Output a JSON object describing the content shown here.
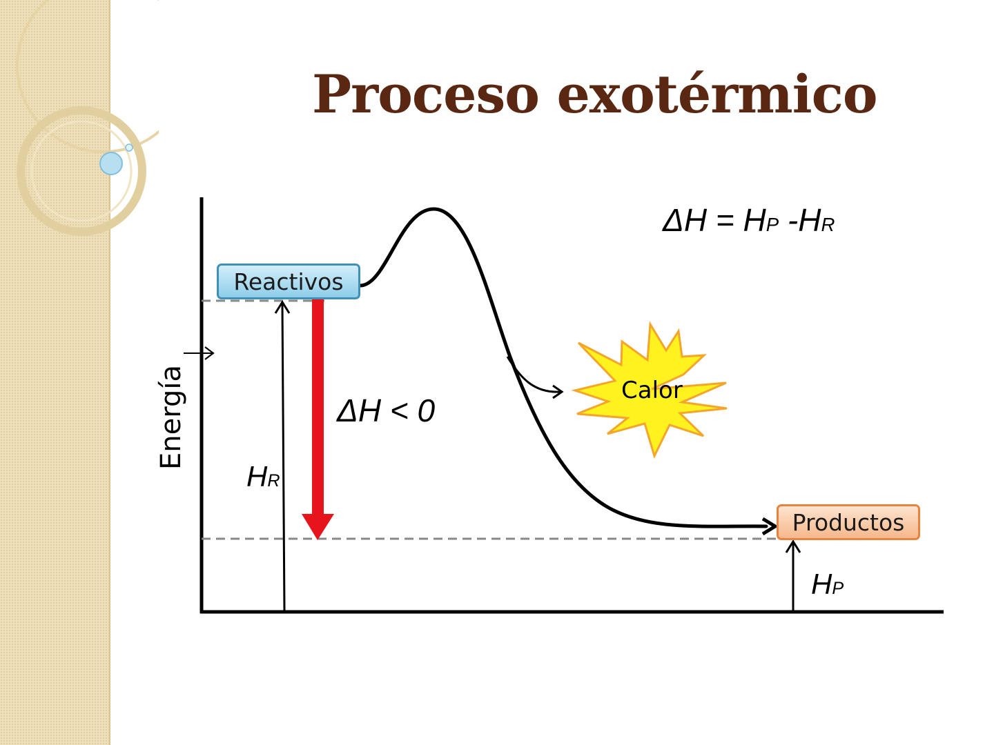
{
  "slide": {
    "title": "Proceso exotérmico"
  },
  "diagram": {
    "y_axis_label": "Energía",
    "reactants_label": "Reactivos",
    "products_label": "Productos",
    "heat_label": "Calor",
    "delta_h_condition": "ΔH < 0",
    "formula": {
      "lhs": "ΔH = H",
      "sub_p": "P",
      "mid": " -H",
      "sub_r": "R"
    },
    "hr_label": {
      "main": "H",
      "sub": "R"
    },
    "hp_label": {
      "main": "H",
      "sub": "P"
    }
  },
  "colors": {
    "title": "#5a2812",
    "delta_arrow": "#e8141c",
    "starburst_fill": "#fff21f",
    "starburst_stroke": "#f4a52a",
    "reactants_box": "#9dd3ec",
    "products_box": "#f9c39b",
    "sidebar": "#efdfb8"
  }
}
